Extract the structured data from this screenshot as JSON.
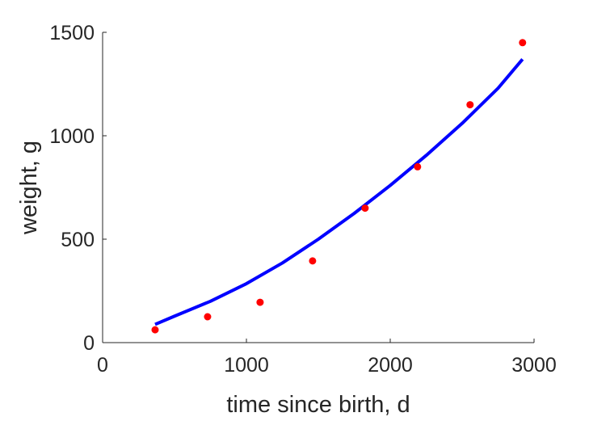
{
  "chart_data": {
    "type": "scatter",
    "title": "",
    "xlabel": "time since birth, d",
    "ylabel": "weight, g",
    "xlim": [
      0,
      3000
    ],
    "ylim": [
      0,
      1500
    ],
    "xticks": [
      0,
      1000,
      2000,
      3000
    ],
    "yticks": [
      0,
      500,
      1000,
      1500
    ],
    "xtick_labels": [
      "0",
      "1000",
      "2000",
      "3000"
    ],
    "ytick_labels": [
      "0",
      "500",
      "1000",
      "1500"
    ],
    "grid": false,
    "legend": "none",
    "series": [
      {
        "kind": "points",
        "color": "#ff0000",
        "x": [
          365,
          730,
          1095,
          1460,
          1825,
          2190,
          2555,
          2920
        ],
        "y": [
          62,
          125,
          195,
          395,
          650,
          850,
          1150,
          1450
        ]
      },
      {
        "kind": "line",
        "color": "#0000ff",
        "x": [
          365,
          500,
          750,
          1000,
          1250,
          1500,
          1750,
          2000,
          2250,
          2500,
          2750,
          2920
        ],
        "y": [
          88,
          128,
          200,
          285,
          385,
          500,
          625,
          760,
          905,
          1060,
          1230,
          1370
        ]
      }
    ]
  }
}
